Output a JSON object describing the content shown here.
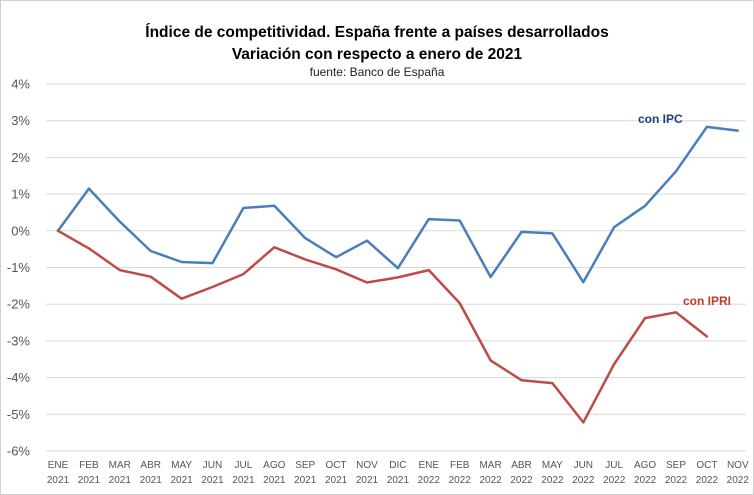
{
  "chart_data": {
    "type": "line",
    "title_line1": "Índice de competitividad. España frente a países desarrollados",
    "title_line2": "Variación con respecto a enero de 2021",
    "subtitle": "fuente: Banco de España",
    "xlabel": "",
    "ylabel": "",
    "ylim": [
      -6,
      4
    ],
    "yticks": [
      "4%",
      "3%",
      "2%",
      "1%",
      "0%",
      "-1%",
      "-2%",
      "-3%",
      "-4%",
      "-5%",
      "-6%"
    ],
    "ytick_values": [
      4,
      3,
      2,
      1,
      0,
      -1,
      -2,
      -3,
      -4,
      -5,
      -6
    ],
    "grid": true,
    "categories": [
      {
        "month": "ENE",
        "year": "2021"
      },
      {
        "month": "FEB",
        "year": "2021"
      },
      {
        "month": "MAR",
        "year": "2021"
      },
      {
        "month": "ABR",
        "year": "2021"
      },
      {
        "month": "MAY",
        "year": "2021"
      },
      {
        "month": "JUN",
        "year": "2021"
      },
      {
        "month": "JUL",
        "year": "2021"
      },
      {
        "month": "AGO",
        "year": "2021"
      },
      {
        "month": "SEP",
        "year": "2021"
      },
      {
        "month": "OCT",
        "year": "2021"
      },
      {
        "month": "NOV",
        "year": "2021"
      },
      {
        "month": "DIC",
        "year": "2021"
      },
      {
        "month": "ENE",
        "year": "2022"
      },
      {
        "month": "FEB",
        "year": "2022"
      },
      {
        "month": "MAR",
        "year": "2022"
      },
      {
        "month": "ABR",
        "year": "2022"
      },
      {
        "month": "MAY",
        "year": "2022"
      },
      {
        "month": "JUN",
        "year": "2022"
      },
      {
        "month": "JUL",
        "year": "2022"
      },
      {
        "month": "AGO",
        "year": "2022"
      },
      {
        "month": "SEP",
        "year": "2022"
      },
      {
        "month": "OCT",
        "year": "2022"
      },
      {
        "month": "NOV",
        "year": "2022"
      }
    ],
    "series": [
      {
        "name": "con IPC",
        "color": "#4a7ebb",
        "label_color": "#1f3d7a",
        "values": [
          0.0,
          1.15,
          0.25,
          -0.55,
          -0.85,
          -0.88,
          0.62,
          0.68,
          -0.2,
          -0.72,
          -0.27,
          -1.02,
          0.32,
          0.28,
          -1.26,
          -0.03,
          -0.07,
          -1.4,
          0.1,
          0.68,
          1.62,
          2.83,
          2.73
        ]
      },
      {
        "name": "con IPRI",
        "color": "#be4b48",
        "label_color": "#c0392b",
        "values": [
          0.0,
          -0.48,
          -1.07,
          -1.25,
          -1.85,
          -1.53,
          -1.18,
          -0.45,
          -0.78,
          -1.05,
          -1.41,
          -1.27,
          -1.07,
          -1.97,
          -3.53,
          -4.07,
          -4.15,
          -5.22,
          -3.63,
          -2.38,
          -2.22,
          -2.88,
          null
        ]
      }
    ]
  }
}
